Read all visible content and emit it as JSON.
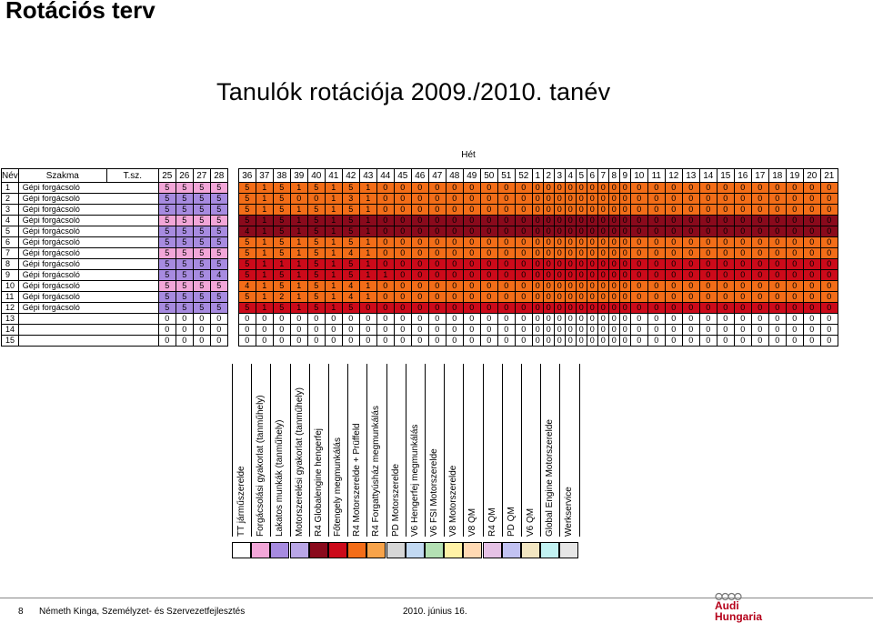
{
  "slide": {
    "title": "Rotációs terv",
    "subtitle": "Tanulók rotációja 2009./2010. tanév",
    "week_label": "Hét"
  },
  "table": {
    "headers": {
      "nev": "Név",
      "szakma": "Szakma",
      "tsz": "T.sz.",
      "weeks": [
        "25",
        "26",
        "27",
        "28",
        "36",
        "37",
        "38",
        "39",
        "40",
        "41",
        "42",
        "43",
        "44",
        "45",
        "46",
        "47",
        "48",
        "49",
        "50",
        "51",
        "52",
        "1",
        "2",
        "3",
        "4",
        "5",
        "6",
        "7",
        "8",
        "9",
        "10",
        "11",
        "12",
        "13",
        "14",
        "15",
        "16",
        "17",
        "18",
        "19",
        "20",
        "21"
      ]
    },
    "rows": [
      {
        "n": "1",
        "szakma": "Gépi forgácsoló",
        "v": [
          "5",
          "5",
          "5",
          "5",
          "5",
          "1",
          "5",
          "1",
          "5",
          "1",
          "5",
          "1",
          "0",
          "0",
          "0",
          "0",
          "0",
          "0",
          "0",
          "0",
          "0",
          "0",
          "0",
          "0",
          "0",
          "0",
          "0",
          "0",
          "0",
          "0",
          "0",
          "0",
          "0",
          "0",
          "0",
          "0",
          "0",
          "0",
          "0",
          "0",
          "0",
          "0"
        ]
      },
      {
        "n": "2",
        "szakma": "Gépi forgácsoló",
        "v": [
          "5",
          "5",
          "5",
          "5",
          "5",
          "1",
          "5",
          "0",
          "0",
          "1",
          "3",
          "1",
          "0",
          "0",
          "0",
          "0",
          "0",
          "0",
          "0",
          "0",
          "0",
          "0",
          "0",
          "0",
          "0",
          "0",
          "0",
          "0",
          "0",
          "0",
          "0",
          "0",
          "0",
          "0",
          "0",
          "0",
          "0",
          "0",
          "0",
          "0",
          "0",
          "0"
        ]
      },
      {
        "n": "3",
        "szakma": "Gépi forgácsoló",
        "v": [
          "5",
          "5",
          "5",
          "5",
          "5",
          "1",
          "5",
          "1",
          "5",
          "1",
          "5",
          "1",
          "0",
          "0",
          "0",
          "0",
          "0",
          "0",
          "0",
          "0",
          "0",
          "0",
          "0",
          "0",
          "0",
          "0",
          "0",
          "0",
          "0",
          "0",
          "0",
          "0",
          "0",
          "0",
          "0",
          "0",
          "0",
          "0",
          "0",
          "0",
          "0",
          "0"
        ]
      },
      {
        "n": "4",
        "szakma": "Gépi forgácsoló",
        "v": [
          "5",
          "5",
          "5",
          "5",
          "5",
          "1",
          "5",
          "1",
          "5",
          "1",
          "5",
          "1",
          "0",
          "0",
          "0",
          "0",
          "0",
          "0",
          "0",
          "0",
          "0",
          "0",
          "0",
          "0",
          "0",
          "0",
          "0",
          "0",
          "0",
          "0",
          "0",
          "0",
          "0",
          "0",
          "0",
          "0",
          "0",
          "0",
          "0",
          "0",
          "0",
          "0"
        ]
      },
      {
        "n": "5",
        "szakma": "Gépi forgácsoló",
        "v": [
          "5",
          "5",
          "5",
          "5",
          "4",
          "1",
          "5",
          "1",
          "5",
          "1",
          "5",
          "1",
          "0",
          "0",
          "0",
          "0",
          "0",
          "0",
          "0",
          "0",
          "0",
          "0",
          "0",
          "0",
          "0",
          "0",
          "0",
          "0",
          "0",
          "0",
          "0",
          "0",
          "0",
          "0",
          "0",
          "0",
          "0",
          "0",
          "0",
          "0",
          "0",
          "0"
        ]
      },
      {
        "n": "6",
        "szakma": "Gépi forgácsoló",
        "v": [
          "5",
          "5",
          "5",
          "5",
          "5",
          "1",
          "5",
          "1",
          "5",
          "1",
          "5",
          "1",
          "0",
          "0",
          "0",
          "0",
          "0",
          "0",
          "0",
          "0",
          "0",
          "0",
          "0",
          "0",
          "0",
          "0",
          "0",
          "0",
          "0",
          "0",
          "0",
          "0",
          "0",
          "0",
          "0",
          "0",
          "0",
          "0",
          "0",
          "0",
          "0",
          "0"
        ]
      },
      {
        "n": "7",
        "szakma": "Gépi forgácsoló",
        "v": [
          "5",
          "5",
          "5",
          "5",
          "5",
          "1",
          "5",
          "1",
          "5",
          "1",
          "4",
          "1",
          "0",
          "0",
          "0",
          "0",
          "0",
          "0",
          "0",
          "0",
          "0",
          "0",
          "0",
          "0",
          "0",
          "0",
          "0",
          "0",
          "0",
          "0",
          "0",
          "0",
          "0",
          "0",
          "0",
          "0",
          "0",
          "0",
          "0",
          "0",
          "0",
          "0"
        ]
      },
      {
        "n": "8",
        "szakma": "Gépi forgácsoló",
        "v": [
          "5",
          "5",
          "5",
          "5",
          "5",
          "1",
          "1",
          "1",
          "5",
          "1",
          "5",
          "1",
          "0",
          "0",
          "0",
          "0",
          "0",
          "0",
          "0",
          "0",
          "0",
          "0",
          "0",
          "0",
          "0",
          "0",
          "0",
          "0",
          "0",
          "0",
          "0",
          "0",
          "0",
          "0",
          "0",
          "0",
          "0",
          "0",
          "0",
          "0",
          "0",
          "0"
        ]
      },
      {
        "n": "9",
        "szakma": "Gépi forgácsoló",
        "v": [
          "5",
          "5",
          "5",
          "4",
          "5",
          "1",
          "5",
          "1",
          "5",
          "1",
          "5",
          "1",
          "1",
          "0",
          "0",
          "0",
          "0",
          "0",
          "0",
          "0",
          "0",
          "0",
          "0",
          "0",
          "0",
          "0",
          "0",
          "0",
          "0",
          "0",
          "0",
          "0",
          "0",
          "0",
          "0",
          "0",
          "0",
          "0",
          "0",
          "0",
          "0",
          "0"
        ]
      },
      {
        "n": "10",
        "szakma": "Gépi forgácsoló",
        "v": [
          "5",
          "5",
          "5",
          "5",
          "4",
          "1",
          "5",
          "1",
          "5",
          "1",
          "4",
          "1",
          "0",
          "0",
          "0",
          "0",
          "0",
          "0",
          "0",
          "0",
          "0",
          "0",
          "0",
          "0",
          "0",
          "0",
          "0",
          "0",
          "0",
          "0",
          "0",
          "0",
          "0",
          "0",
          "0",
          "0",
          "0",
          "0",
          "0",
          "0",
          "0",
          "0"
        ]
      },
      {
        "n": "11",
        "szakma": "Gépi forgácsoló",
        "v": [
          "5",
          "5",
          "5",
          "5",
          "5",
          "1",
          "2",
          "1",
          "5",
          "1",
          "4",
          "1",
          "0",
          "0",
          "0",
          "0",
          "0",
          "0",
          "0",
          "0",
          "0",
          "0",
          "0",
          "0",
          "0",
          "0",
          "0",
          "0",
          "0",
          "0",
          "0",
          "0",
          "0",
          "0",
          "0",
          "0",
          "0",
          "0",
          "0",
          "0",
          "0",
          "0"
        ]
      },
      {
        "n": "12",
        "szakma": "Gépi forgácsoló",
        "v": [
          "5",
          "5",
          "5",
          "5",
          "5",
          "1",
          "5",
          "1",
          "5",
          "1",
          "5",
          "0",
          "0",
          "0",
          "0",
          "0",
          "0",
          "0",
          "0",
          "0",
          "0",
          "0",
          "0",
          "0",
          "0",
          "0",
          "0",
          "0",
          "0",
          "0",
          "0",
          "0",
          "0",
          "0",
          "0",
          "0",
          "0",
          "0",
          "0",
          "0",
          "0",
          "0"
        ]
      },
      {
        "n": "13",
        "szakma": "",
        "v": [
          "0",
          "0",
          "0",
          "0",
          "0",
          "0",
          "0",
          "0",
          "0",
          "0",
          "0",
          "0",
          "0",
          "0",
          "0",
          "0",
          "0",
          "0",
          "0",
          "0",
          "0",
          "0",
          "0",
          "0",
          "0",
          "0",
          "0",
          "0",
          "0",
          "0",
          "0",
          "0",
          "0",
          "0",
          "0",
          "0",
          "0",
          "0",
          "0",
          "0",
          "0",
          "0"
        ]
      },
      {
        "n": "14",
        "szakma": "",
        "v": [
          "0",
          "0",
          "0",
          "0",
          "0",
          "0",
          "0",
          "0",
          "0",
          "0",
          "0",
          "0",
          "0",
          "0",
          "0",
          "0",
          "0",
          "0",
          "0",
          "0",
          "0",
          "0",
          "0",
          "0",
          "0",
          "0",
          "0",
          "0",
          "0",
          "0",
          "0",
          "0",
          "0",
          "0",
          "0",
          "0",
          "0",
          "0",
          "0",
          "0",
          "0",
          "0"
        ]
      },
      {
        "n": "15",
        "szakma": "",
        "v": [
          "0",
          "0",
          "0",
          "0",
          "0",
          "0",
          "0",
          "0",
          "0",
          "0",
          "0",
          "0",
          "0",
          "0",
          "0",
          "0",
          "0",
          "0",
          "0",
          "0",
          "0",
          "0",
          "0",
          "0",
          "0",
          "0",
          "0",
          "0",
          "0",
          "0",
          "0",
          "0",
          "0",
          "0",
          "0",
          "0",
          "0",
          "0",
          "0",
          "0",
          "0",
          "0"
        ]
      }
    ],
    "row_colors": {
      "1": "orange",
      "2": "orange",
      "3": "orange",
      "4": "darkred",
      "5": "darkred",
      "6": "orange",
      "7": "orange",
      "8": "red",
      "9": "red",
      "10": "orange",
      "11": "orange",
      "12": "red"
    }
  },
  "legend_labels": [
    "TT járműszerelde",
    "Forgácsolási gyakorlat (tanműhely)",
    "Lakatos munkák (tanműhely)",
    "Motorszerelési gyakorlat (tanműhely)",
    "R4 Globalengine hengerfej",
    "Főtengely megmunkálás",
    "R4 Motorszerelde + Prüffeld",
    "R4 Forgattyúsház megmunkálás",
    "PD Motorszerelde",
    "V6 Hengerfej megmunkálás",
    "V6 FSI Motorszerelde",
    "V8 Motorszerelde",
    "V8 QM",
    "R4 QM",
    "PD QM",
    "V6 QM",
    "Global Engine Motorszerelde",
    "Werkservice"
  ],
  "legend_colors": [
    "#ffffff",
    "#f2a6d8",
    "#a78be0",
    "#b9a6e6",
    "#8a0a1c",
    "#cc0a1a",
    "#f36d18",
    "#f7a34a",
    "#d6d6d6",
    "#c2d9f2",
    "#b3e0b3",
    "#fff2a6",
    "#ffd9b3",
    "#e6c2e6",
    "#c2c2f2",
    "#f2e6c2",
    "#c2f2f2",
    "#e6e6e6"
  ],
  "palette": {
    "pink": "#f2a6d8",
    "purple": "#a78be0",
    "darkred": "#8a0a1c",
    "red": "#cc0a1a",
    "orange": "#f36d18",
    "grey": "#d6d6d6"
  },
  "footer": {
    "page": "8",
    "author": "Németh Kinga, Személyzet- és Szervezetfejlesztés",
    "date": "2010. június 16.",
    "brand_top": "Audi",
    "brand_bottom": "Hungaria"
  }
}
